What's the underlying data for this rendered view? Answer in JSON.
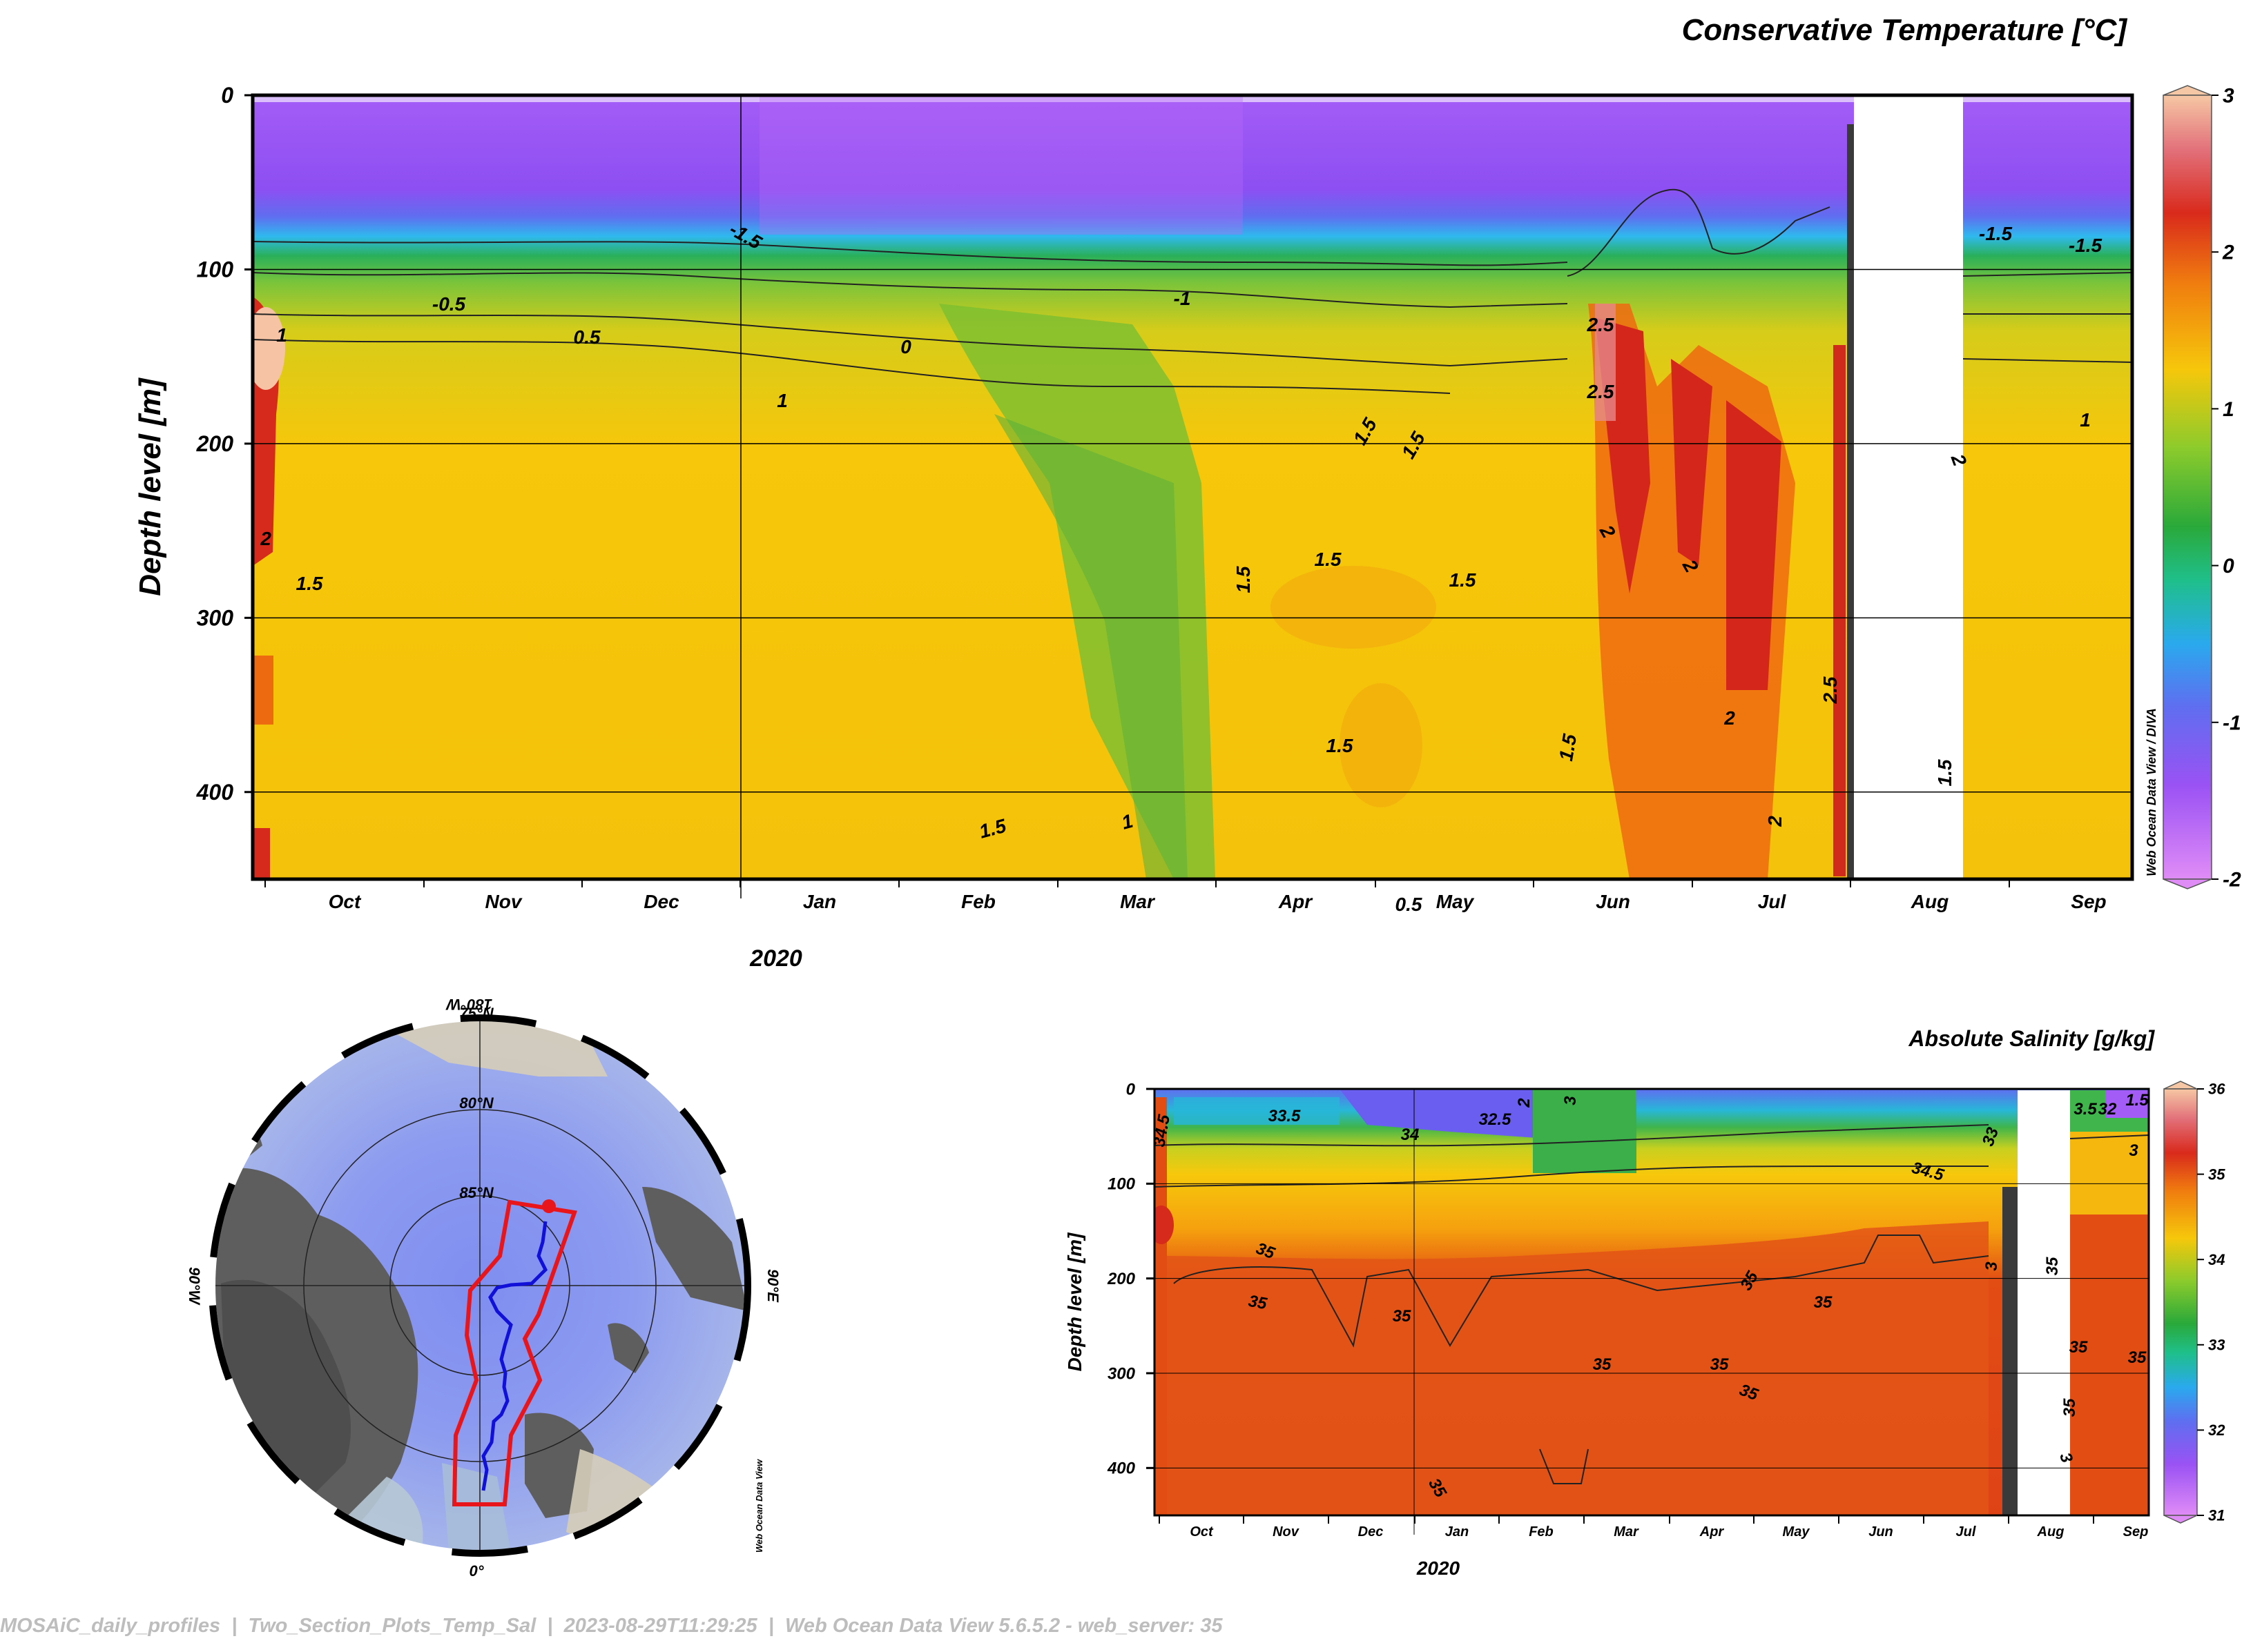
{
  "footer": "MOSAiC_daily_profiles  |  Two_Section_Plots_Temp_Sal  |  2023-08-29T11:29:25  |  Web Ocean Data View 5.6.5.2 - web_server: 35",
  "credit_section": "Web Ocean Data View / DIVA",
  "credit_map": "Web Ocean Data View",
  "year_label": "2020",
  "chart_data": [
    {
      "id": "temperature",
      "type": "heatmap",
      "title": "Conservative Temperature [°C]",
      "ylabel": "Depth level [m]",
      "yticks": [
        0,
        100,
        200,
        300,
        400
      ],
      "ylim": [
        0,
        450
      ],
      "months": [
        "Oct",
        "Nov",
        "Dec",
        "Jan",
        "Feb",
        "Mar",
        "Apr",
        "May",
        "Jun",
        "Jul",
        "Aug",
        "Sep"
      ],
      "colorbar": {
        "min": -2,
        "max": 3,
        "ticks": [
          -2,
          -1,
          0,
          1,
          2,
          3
        ]
      },
      "contour_labels": [
        "-1.5",
        "-0.5",
        "0.5",
        "0",
        "1",
        "-1",
        "-1.5",
        "0.5",
        "2.5",
        "2.5",
        "1.5",
        "1.5",
        "1.5",
        "1.5",
        "1.5",
        "1.5",
        "1.5",
        "2",
        "2",
        "2",
        "2",
        "1.5",
        "1",
        "1",
        "2",
        "1.5",
        "-1.5",
        "1",
        "2",
        "2.5",
        "1.5"
      ]
    },
    {
      "id": "salinity",
      "type": "heatmap",
      "title": "Absolute Salinity [g/kg]",
      "ylabel": "Depth level [m]",
      "yticks": [
        0,
        100,
        200,
        300,
        400
      ],
      "ylim": [
        0,
        450
      ],
      "months": [
        "Oct",
        "Nov",
        "Dec",
        "Jan",
        "Feb",
        "Mar",
        "Apr",
        "May",
        "Jun",
        "Jul",
        "Aug",
        "Sep"
      ],
      "colorbar": {
        "min": 31,
        "max": 36,
        "ticks": [
          31,
          32,
          33,
          34,
          35,
          36
        ]
      },
      "contour_labels": [
        "34.5",
        "33.5",
        "32.5",
        "2",
        "3",
        "34",
        "35",
        "35",
        "35",
        "35",
        "35",
        "35",
        "35",
        "35",
        "35",
        "35",
        "34.5",
        "33",
        "3",
        "3.5",
        "32",
        "1.5",
        "3",
        "35",
        "35",
        "35",
        "3"
      ]
    }
  ],
  "map": {
    "lat_labels": [
      "75°N",
      "80°N",
      "85°N"
    ],
    "lon_labels": [
      "180°W",
      "90°W",
      "90°E",
      "0°"
    ]
  }
}
